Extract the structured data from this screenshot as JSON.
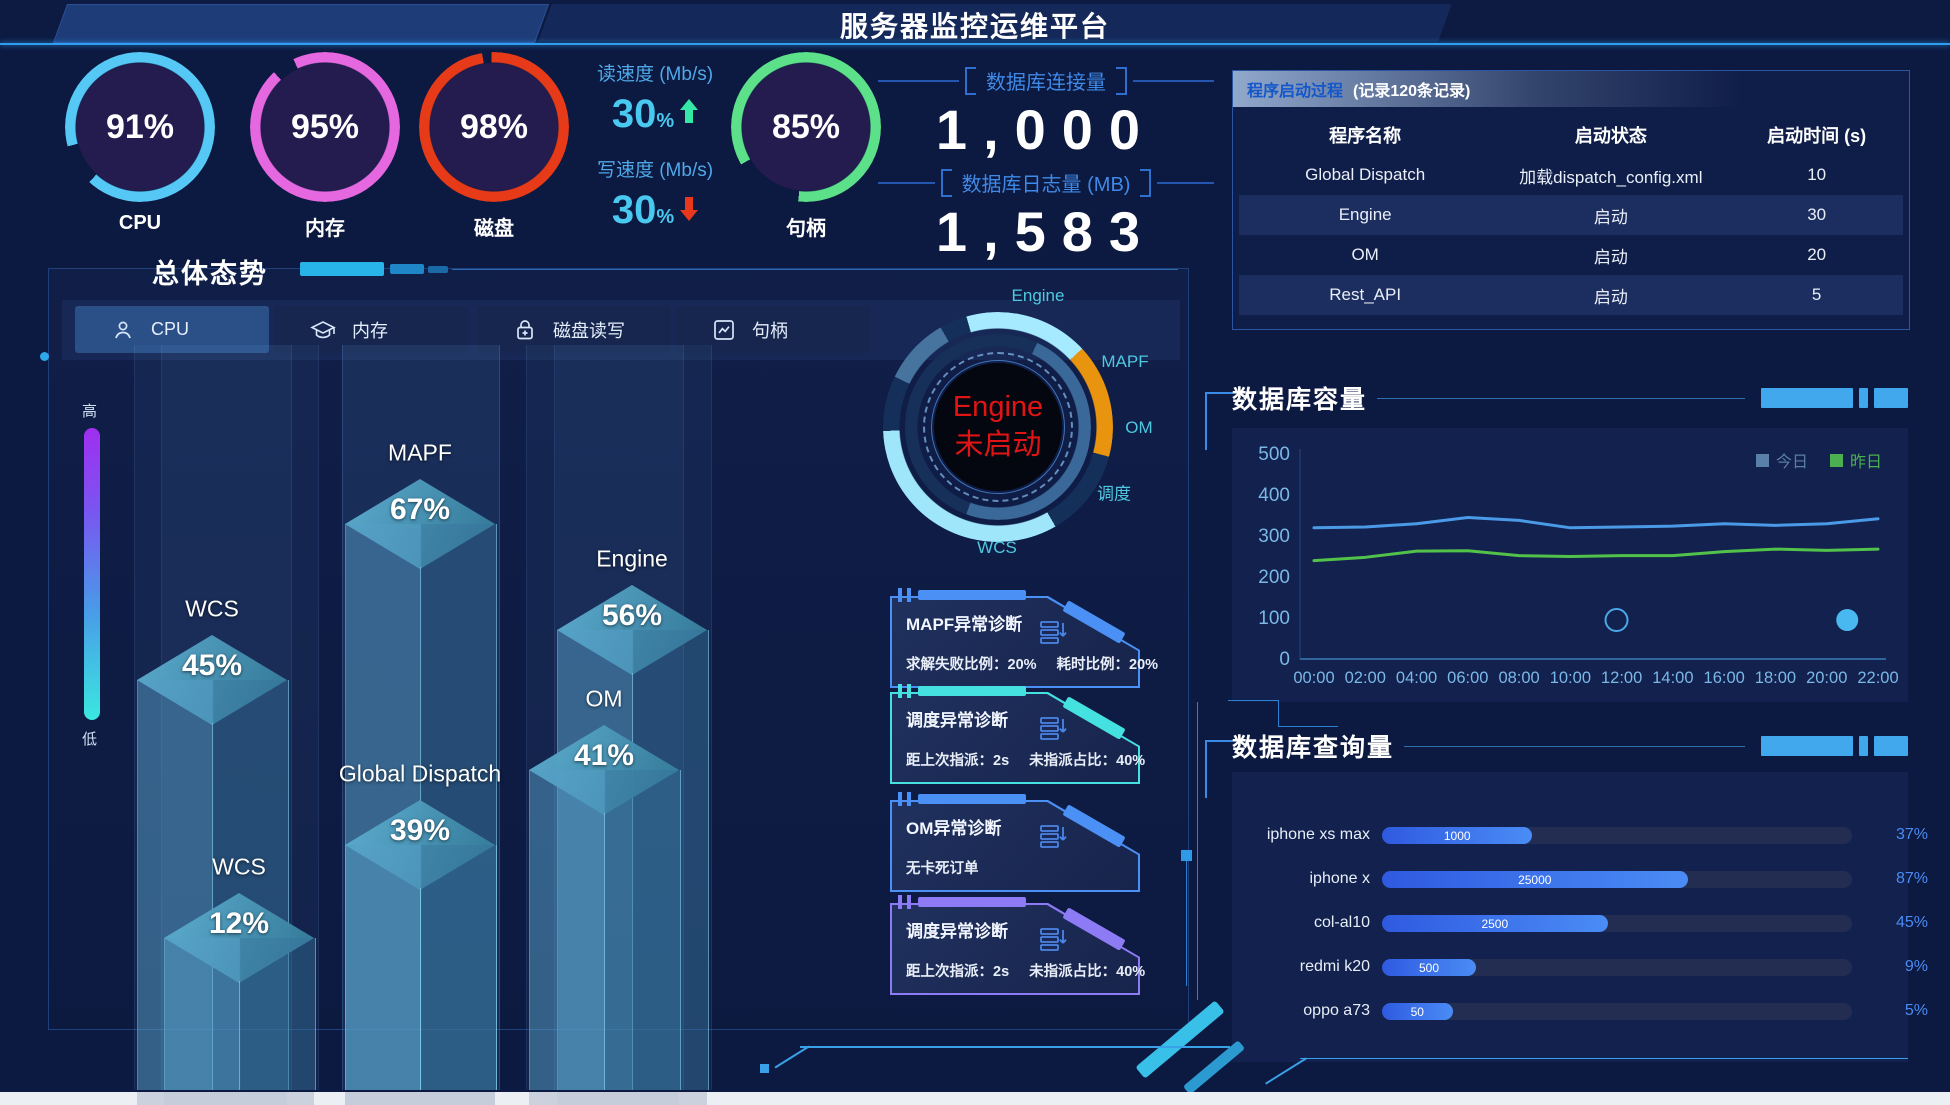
{
  "header": {
    "title": "服务器监控运维平台"
  },
  "gauges": [
    {
      "id": "cpu",
      "label": "CPU",
      "value": "91%",
      "pct": 91,
      "color": "#56c8f5",
      "from": 255
    },
    {
      "id": "memory",
      "label": "内存",
      "value": "95%",
      "pct": 95,
      "color": "#e668e0",
      "from": 335
    },
    {
      "id": "disk",
      "label": "磁盘",
      "value": "98%",
      "pct": 98,
      "color": "#e63a18",
      "from": 358
    },
    {
      "id": "handle",
      "label": "句柄",
      "value": "85%",
      "pct": 85,
      "color": "#5ce08a",
      "from": 240
    }
  ],
  "io_speed": {
    "read_label": "读速度 (Mb/s)",
    "read_value": "30",
    "read_unit": "%",
    "write_label": "写速度 (Mb/s)",
    "write_value": "30",
    "write_unit": "%",
    "up_color": "#35e8a8",
    "down_color": "#e8381c"
  },
  "db_stats": [
    {
      "label": "数据库连接量",
      "value": "1,000"
    },
    {
      "label": "数据库日志量 (MB)",
      "value": "1,583"
    }
  ],
  "startup_panel": {
    "title": "程序启动过程",
    "subtitle": "(记录120条记录)",
    "columns": [
      "程序名称",
      "启动状态",
      "启动时间 (s)"
    ],
    "rows": [
      {
        "name": "Global Dispatch",
        "status": "加载dispatch_config.xml",
        "time": "10",
        "highlight": false
      },
      {
        "name": "Engine",
        "status": "启动",
        "time": "30",
        "highlight": true
      },
      {
        "name": "OM",
        "status": "启动",
        "time": "20",
        "highlight": false
      },
      {
        "name": "Rest_API",
        "status": "启动",
        "time": "5",
        "highlight": true
      }
    ]
  },
  "overview": {
    "title": "总体态势",
    "tabs": [
      {
        "label": "CPU",
        "icon": "user-icon",
        "active": true
      },
      {
        "label": "内存",
        "icon": "cap-icon",
        "active": false
      },
      {
        "label": "磁盘读写",
        "icon": "disk-lock-icon",
        "active": false
      },
      {
        "label": "句柄",
        "icon": "chart-icon",
        "active": false
      }
    ],
    "scale_high": "高",
    "scale_low": "低",
    "bars": [
      {
        "name": "WCS",
        "value": "45%",
        "row": "back"
      },
      {
        "name": "MAPF",
        "value": "67%",
        "row": "back"
      },
      {
        "name": "Engine",
        "value": "56%",
        "row": "back"
      },
      {
        "name": "WCS",
        "value": "12%",
        "row": "front"
      },
      {
        "name": "Global Dispatch",
        "value": "39%",
        "row": "front"
      },
      {
        "name": "OM",
        "value": "41%",
        "row": "front"
      }
    ]
  },
  "engine_gauge": {
    "center_line1": "Engine",
    "center_line2": "未启动",
    "labels": [
      "Engine",
      "MAPF",
      "OM",
      "调度",
      "WCS"
    ]
  },
  "diagnostics": [
    {
      "title": "MAPF异常诊断",
      "accent": "#4a90f5",
      "stats": [
        "求解失败比例：20%",
        "耗时比例：20%"
      ]
    },
    {
      "title": "调度异常诊断",
      "accent": "#45e0e0",
      "stats": [
        "距上次指派：2s",
        "未指派占比：40%"
      ]
    },
    {
      "title": "OM异常诊断",
      "accent": "#4a90f5",
      "stats": [
        "无卡死订单"
      ]
    },
    {
      "title": "调度异常诊断",
      "accent": "#8d7bf5",
      "stats": [
        "距上次指派：2s",
        "未指派占比：40%"
      ]
    }
  ],
  "capacity_panel": {
    "title": "数据库容量"
  },
  "query_panel": {
    "title": "数据库查询量"
  },
  "chart_data": [
    {
      "type": "line",
      "title": "数据库容量",
      "x": [
        "00:00",
        "02:00",
        "04:00",
        "06:00",
        "08:00",
        "10:00",
        "12:00",
        "14:00",
        "16:00",
        "18:00",
        "20:00",
        "22:00"
      ],
      "series": [
        {
          "name": "今日",
          "color": "#4a9ae8",
          "legend_color": "#5a7fa8",
          "values": [
            320,
            322,
            330,
            345,
            338,
            320,
            322,
            324,
            330,
            326,
            330,
            342
          ]
        },
        {
          "name": "昨日",
          "color": "#52c24a",
          "legend_color": "#4caf50",
          "values": [
            240,
            248,
            263,
            264,
            252,
            250,
            252,
            252,
            262,
            268,
            265,
            268
          ]
        }
      ],
      "markers": [
        {
          "xi": 5.9,
          "y": 95,
          "style": "hollow",
          "color": "#4aa8e8"
        },
        {
          "xi": 10.4,
          "y": 95,
          "style": "filled",
          "color": "#4ab8f0"
        }
      ],
      "ylim": [
        0,
        500
      ],
      "y_ticks": [
        0,
        100,
        200,
        300,
        400,
        500
      ],
      "legend_position": "top-right",
      "grid": false
    },
    {
      "type": "bar",
      "title": "数据库查询量",
      "orientation": "horizontal",
      "categories": [
        "iphone xs max",
        "iphone x",
        "col-al10",
        "redmi k20",
        "oppo a73"
      ],
      "values": [
        1000,
        25000,
        2500,
        500,
        50
      ],
      "percent": [
        "37%",
        "87%",
        "45%",
        "9%",
        "5%"
      ],
      "fill_pct": [
        32,
        65,
        48,
        20,
        15
      ]
    },
    {
      "type": "bar",
      "title": "总体态势 - CPU",
      "unit": "%",
      "back_row": {
        "categories": [
          "WCS",
          "MAPF",
          "Engine"
        ],
        "values": [
          45,
          67,
          56
        ]
      },
      "front_row": {
        "categories": [
          "WCS",
          "Global Dispatch",
          "OM"
        ],
        "values": [
          12,
          39,
          41
        ]
      }
    }
  ]
}
